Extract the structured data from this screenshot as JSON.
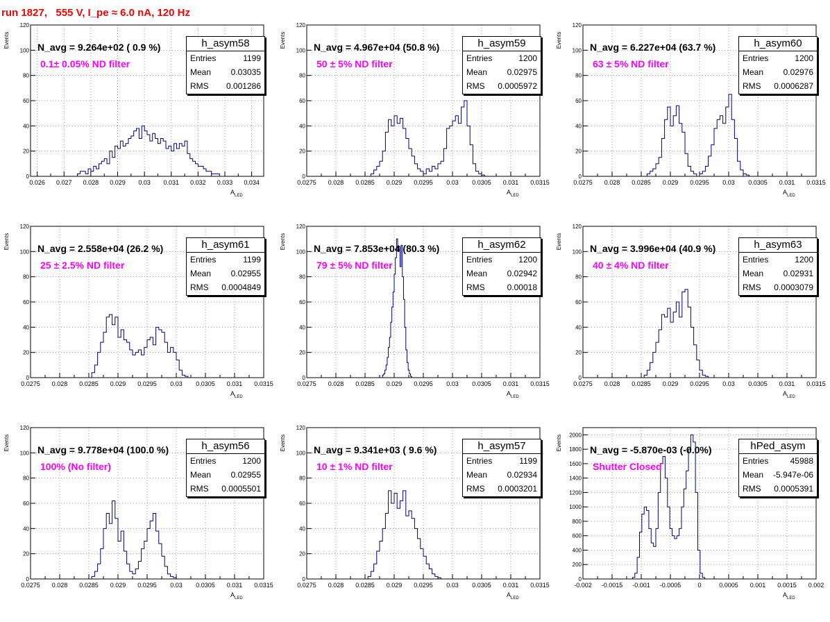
{
  "title": "run 1827,   555 V, I_pe ≈ 6.0 nA, 120 Hz",
  "y_label": "Events",
  "x_label_main": "A",
  "x_label_sub": "LED",
  "stat_labels": {
    "entries": "Entries",
    "mean": "Mean",
    "rms": "RMS"
  },
  "panels": [
    {
      "name": "h_asym58",
      "n_avg": "N_avg = 9.264e+02 ( 0.9 %)",
      "filter": "0.1± 0.05% ND filter",
      "entries": "1199",
      "mean": "0.03035",
      "rms": "0.001286"
    },
    {
      "name": "h_asym59",
      "n_avg": "N_avg = 4.967e+04 (50.8 %)",
      "filter": "50 ± 5% ND filter",
      "entries": "1200",
      "mean": "0.02975",
      "rms": "0.0005972"
    },
    {
      "name": "h_asym60",
      "n_avg": "N_avg = 6.227e+04 (63.7 %)",
      "filter": "63 ± 5% ND filter",
      "entries": "1200",
      "mean": "0.02976",
      "rms": "0.0006287"
    },
    {
      "name": "h_asym61",
      "n_avg": "N_avg = 2.558e+04 (26.2 %)",
      "filter": "25 ± 2.5% ND filter",
      "entries": "1199",
      "mean": "0.02955",
      "rms": "0.0004849"
    },
    {
      "name": "h_asym62",
      "n_avg": "N_avg = 7.853e+04 (80.3 %)",
      "filter": "79 ± 5% ND filter",
      "entries": "1200",
      "mean": "0.02942",
      "rms": "0.00018"
    },
    {
      "name": "h_asym63",
      "n_avg": "N_avg = 3.996e+04 (40.9 %)",
      "filter": "40 ± 4% ND filter",
      "entries": "1200",
      "mean": "0.02931",
      "rms": "0.0003079"
    },
    {
      "name": "h_asym56",
      "n_avg": "N_avg = 9.778e+04 (100.0 %)",
      "filter": "100% (No filter)",
      "entries": "1200",
      "mean": "0.02955",
      "rms": "0.0005501"
    },
    {
      "name": "h_asym57",
      "n_avg": "N_avg = 9.341e+03 ( 9.6 %)",
      "filter": "10 ± 1% ND filter",
      "entries": "1199",
      "mean": "0.02934",
      "rms": "0.0003201"
    },
    {
      "name": "hPed_asym",
      "n_avg": "N_avg = -5.870e-03 (-0.0%)",
      "filter": "Shutter Closed",
      "entries": "45988",
      "mean": "-5.947e-06",
      "rms": "0.0005391"
    }
  ],
  "chart_data": [
    {
      "type": "histogram",
      "name": "h_asym58",
      "xlim": [
        0.02575,
        0.03445
      ],
      "ylim": [
        0,
        120
      ],
      "xticks": [
        0.026,
        0.027,
        0.028,
        0.029,
        0.03,
        0.031,
        0.032,
        0.033,
        0.034
      ],
      "xtick_labels": [
        "0.026",
        "0.027",
        "0.028",
        "0.029",
        "0.03",
        "0.031",
        "0.032",
        "0.033",
        "0.034"
      ],
      "yticks": [
        0,
        20,
        40,
        60,
        80,
        100,
        120
      ],
      "grid": true,
      "bin_start": 0.0275,
      "bin_width": 0.0001,
      "values": [
        2,
        4,
        4,
        2,
        6,
        4,
        8,
        6,
        10,
        12,
        14,
        10,
        20,
        15,
        24,
        22,
        28,
        24,
        26,
        30,
        32,
        36,
        38,
        30,
        40,
        36,
        33,
        28,
        34,
        30,
        26,
        30,
        28,
        22,
        24,
        20,
        26,
        22,
        26,
        24,
        28,
        18,
        14,
        12,
        10,
        8,
        8,
        6,
        4,
        4,
        2,
        2,
        2,
        0,
        0,
        0,
        0,
        0
      ]
    },
    {
      "type": "histogram",
      "name": "h_asym59",
      "xlim": [
        0.0275,
        0.0315
      ],
      "ylim": [
        0,
        120
      ],
      "xticks": [
        0.0275,
        0.028,
        0.0285,
        0.029,
        0.0295,
        0.03,
        0.0305,
        0.031,
        0.0315
      ],
      "xtick_labels": [
        "0.0275",
        "0.028",
        "0.0285",
        "0.029",
        "0.0295",
        "0.03",
        "0.0305",
        "0.031",
        "0.0315"
      ],
      "yticks": [
        0,
        20,
        40,
        60,
        80,
        100,
        120
      ],
      "grid": true,
      "bin_start": 0.0286,
      "bin_width": 5e-05,
      "values": [
        2,
        5,
        8,
        12,
        20,
        35,
        45,
        40,
        48,
        42,
        46,
        38,
        30,
        22,
        16,
        10,
        6,
        4,
        2,
        6,
        4,
        8,
        6,
        10,
        12,
        22,
        38,
        40,
        44,
        48,
        42,
        55,
        60,
        40,
        25,
        10,
        4,
        2,
        1,
        0
      ]
    },
    {
      "type": "histogram",
      "name": "h_asym60",
      "xlim": [
        0.0275,
        0.0315
      ],
      "ylim": [
        0,
        120
      ],
      "xticks": [
        0.0275,
        0.028,
        0.0285,
        0.029,
        0.0295,
        0.03,
        0.0305,
        0.031,
        0.0315
      ],
      "xtick_labels": [
        "0.0275",
        "0.028",
        "0.0285",
        "0.029",
        "0.0295",
        "0.03",
        "0.0305",
        "0.031",
        "0.0315"
      ],
      "yticks": [
        0,
        20,
        40,
        60,
        80,
        100,
        120
      ],
      "grid": true,
      "bin_start": 0.0286,
      "bin_width": 5e-05,
      "values": [
        2,
        4,
        6,
        10,
        15,
        30,
        45,
        55,
        40,
        48,
        56,
        42,
        35,
        18,
        8,
        4,
        2,
        0,
        2,
        4,
        8,
        16,
        25,
        38,
        45,
        48,
        42,
        55,
        65,
        45,
        30,
        12,
        5,
        2,
        1,
        0
      ]
    },
    {
      "type": "histogram",
      "name": "h_asym61",
      "xlim": [
        0.0275,
        0.0315
      ],
      "ylim": [
        0,
        120
      ],
      "xticks": [
        0.0275,
        0.028,
        0.0285,
        0.029,
        0.0295,
        0.03,
        0.0305,
        0.031,
        0.0315
      ],
      "xtick_labels": [
        "0.0275",
        "0.028",
        "0.0285",
        "0.029",
        "0.0295",
        "0.03",
        "0.0305",
        "0.031",
        "0.0315"
      ],
      "yticks": [
        0,
        20,
        40,
        60,
        80,
        100,
        120
      ],
      "grid": true,
      "bin_start": 0.02855,
      "bin_width": 5e-05,
      "values": [
        4,
        10,
        20,
        28,
        36,
        48,
        50,
        42,
        48,
        32,
        38,
        30,
        28,
        22,
        18,
        20,
        22,
        18,
        24,
        30,
        32,
        26,
        40,
        38,
        36,
        28,
        20,
        24,
        20,
        14,
        6,
        2,
        1,
        0
      ]
    },
    {
      "type": "histogram",
      "name": "h_asym62",
      "xlim": [
        0.0275,
        0.0315
      ],
      "ylim": [
        0,
        120
      ],
      "xticks": [
        0.0275,
        0.028,
        0.0285,
        0.029,
        0.0295,
        0.03,
        0.0305,
        0.031,
        0.0315
      ],
      "xtick_labels": [
        "0.0275",
        "0.028",
        "0.0285",
        "0.029",
        "0.0295",
        "0.03",
        "0.0305",
        "0.031",
        "0.0315"
      ],
      "yticks": [
        0,
        20,
        40,
        60,
        80,
        100,
        120
      ],
      "grid": true,
      "bin_start": 0.0288,
      "bin_width": 2e-05,
      "values": [
        2,
        3,
        6,
        10,
        16,
        24,
        32,
        44,
        56,
        68,
        82,
        95,
        110,
        100,
        104,
        88,
        105,
        80,
        62,
        40,
        22,
        12,
        6,
        3,
        1,
        0
      ]
    },
    {
      "type": "histogram",
      "name": "h_asym63",
      "xlim": [
        0.0275,
        0.0315
      ],
      "ylim": [
        0,
        120
      ],
      "xticks": [
        0.0275,
        0.028,
        0.0285,
        0.029,
        0.0295,
        0.03,
        0.0305,
        0.031,
        0.0315
      ],
      "xtick_labels": [
        "0.0275",
        "0.028",
        "0.0285",
        "0.029",
        "0.0295",
        "0.03",
        "0.0305",
        "0.031",
        "0.0315"
      ],
      "yticks": [
        0,
        20,
        40,
        60,
        80,
        100,
        120
      ],
      "grid": true,
      "bin_start": 0.02855,
      "bin_width": 5e-05,
      "values": [
        2,
        6,
        12,
        20,
        28,
        38,
        50,
        48,
        55,
        44,
        52,
        60,
        48,
        68,
        70,
        56,
        40,
        26,
        14,
        6,
        2,
        1,
        0
      ]
    },
    {
      "type": "histogram",
      "name": "h_asym56",
      "xlim": [
        0.0275,
        0.0315
      ],
      "ylim": [
        0,
        120
      ],
      "xticks": [
        0.0275,
        0.028,
        0.0285,
        0.029,
        0.0295,
        0.03,
        0.0305,
        0.031,
        0.0315
      ],
      "xtick_labels": [
        "0.0275",
        "0.028",
        "0.0285",
        "0.029",
        "0.0295",
        "0.03",
        "0.0305",
        "0.031",
        "0.0315"
      ],
      "yticks": [
        0,
        20,
        40,
        60,
        80,
        100,
        120
      ],
      "grid": true,
      "bin_start": 0.02855,
      "bin_width": 5e-05,
      "values": [
        2,
        6,
        12,
        24,
        40,
        52,
        44,
        62,
        48,
        30,
        38,
        22,
        12,
        6,
        4,
        8,
        14,
        24,
        30,
        40,
        46,
        52,
        38,
        28,
        18,
        10,
        4,
        2,
        1,
        0
      ]
    },
    {
      "type": "histogram",
      "name": "h_asym57",
      "xlim": [
        0.0275,
        0.0315
      ],
      "ylim": [
        0,
        120
      ],
      "xticks": [
        0.0275,
        0.028,
        0.0285,
        0.029,
        0.0295,
        0.03,
        0.0305,
        0.031,
        0.0315
      ],
      "xtick_labels": [
        "0.0275",
        "0.028",
        "0.0285",
        "0.029",
        "0.0295",
        "0.03",
        "0.0305",
        "0.031",
        "0.0315"
      ],
      "yticks": [
        0,
        20,
        40,
        60,
        80,
        100,
        120
      ],
      "grid": true,
      "bin_start": 0.02855,
      "bin_width": 5e-05,
      "values": [
        2,
        6,
        12,
        22,
        30,
        40,
        52,
        70,
        60,
        68,
        56,
        62,
        70,
        50,
        54,
        48,
        40,
        32,
        24,
        18,
        12,
        8,
        4,
        2,
        1,
        0
      ]
    },
    {
      "type": "histogram",
      "name": "hPed_asym",
      "xlim": [
        -0.002,
        0.002
      ],
      "ylim": [
        0,
        2100
      ],
      "xticks": [
        -0.002,
        -0.0015,
        -0.001,
        -0.0005,
        0,
        0.0005,
        0.001,
        0.0015,
        0.002
      ],
      "xtick_labels": [
        "-0.002",
        "-0.0015",
        "-0.001",
        "-0.0005",
        "0",
        "0.0005",
        "0.001",
        "0.0015",
        "0.002"
      ],
      "yticks": [
        0,
        200,
        400,
        600,
        800,
        1000,
        1200,
        1400,
        1600,
        1800,
        2000
      ],
      "ytick_labels": [
        "0",
        "200",
        "400",
        "600",
        "800",
        "1000",
        "1200",
        "1400",
        "1600",
        "1800",
        "2000"
      ],
      "grid": true,
      "bin_start": -0.00115,
      "bin_width": 4e-05,
      "values": [
        20,
        80,
        300,
        650,
        900,
        1000,
        950,
        700,
        500,
        450,
        700,
        1200,
        1600,
        1700,
        1400,
        1000,
        700,
        600,
        560,
        600,
        700,
        1000,
        1250,
        1500,
        1800,
        2000,
        1900,
        1200,
        400,
        80,
        20,
        0
      ]
    }
  ]
}
